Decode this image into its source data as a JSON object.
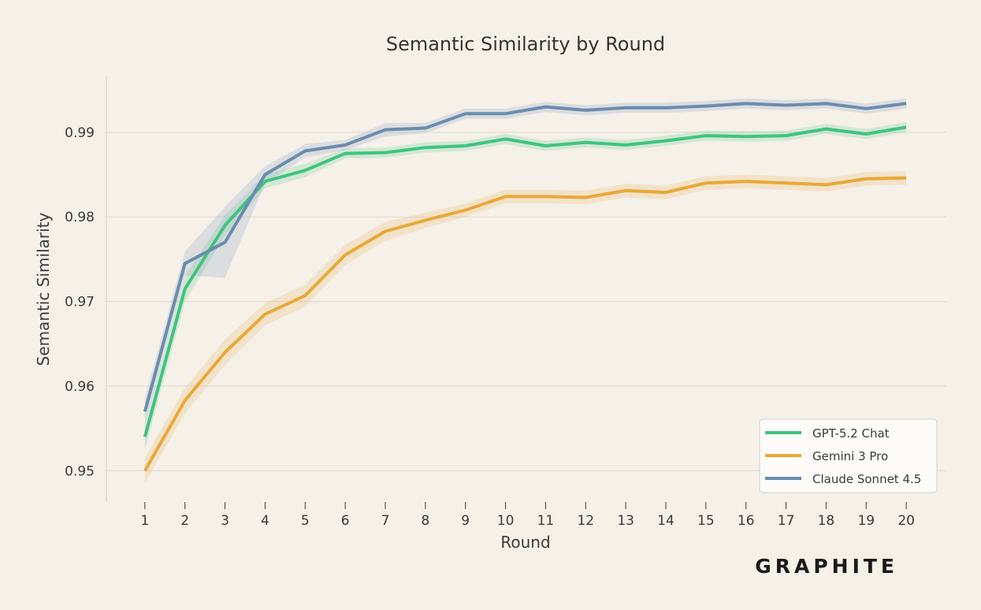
{
  "brand": "GRAPHITE",
  "chart_data": {
    "type": "line",
    "title": "Semantic Similarity by Round",
    "xlabel": "Round",
    "ylabel": "Semantic Similarity",
    "x": [
      1,
      2,
      3,
      4,
      5,
      6,
      7,
      8,
      9,
      10,
      11,
      12,
      13,
      14,
      15,
      16,
      17,
      18,
      19,
      20
    ],
    "xlim": [
      0.0,
      21.0
    ],
    "ylim": [
      0.9463,
      0.9966
    ],
    "yticks": [
      0.95,
      0.96,
      0.97,
      0.98,
      0.99
    ],
    "ytick_labels": [
      "0.95",
      "0.96",
      "0.97",
      "0.98",
      "0.99"
    ],
    "grid": true,
    "legend_position": "bottom-right",
    "series": [
      {
        "name": "GPT-5.2 Chat",
        "color": "#3ec47e",
        "values": [
          0.954,
          0.9715,
          0.979,
          0.9842,
          0.9855,
          0.9875,
          0.9876,
          0.9882,
          0.9884,
          0.9892,
          0.9884,
          0.9888,
          0.9885,
          0.989,
          0.9896,
          0.9895,
          0.9896,
          0.9904,
          0.9898,
          0.9906
        ],
        "ci_halfwidth": [
          0.0015,
          0.0015,
          0.0012,
          0.0008,
          0.0008,
          0.0006,
          0.0006,
          0.0006,
          0.0006,
          0.0006,
          0.0006,
          0.0006,
          0.0006,
          0.0006,
          0.0006,
          0.0006,
          0.0006,
          0.0006,
          0.0006,
          0.0006
        ]
      },
      {
        "name": "Gemini 3 Pro",
        "color": "#e8a838",
        "values": [
          0.95,
          0.9583,
          0.964,
          0.9685,
          0.9707,
          0.9755,
          0.9783,
          0.9796,
          0.9808,
          0.9824,
          0.9824,
          0.9823,
          0.9831,
          0.9829,
          0.984,
          0.9842,
          0.984,
          0.9838,
          0.9845,
          0.9846
        ],
        "ci_halfwidth": [
          0.0015,
          0.0015,
          0.0015,
          0.0013,
          0.0013,
          0.0012,
          0.0011,
          0.0009,
          0.0008,
          0.0008,
          0.0008,
          0.0008,
          0.0008,
          0.0008,
          0.0008,
          0.0008,
          0.0008,
          0.0008,
          0.0008,
          0.0008
        ]
      },
      {
        "name": "Claude Sonnet 4.5",
        "color": "#6a8caf",
        "values": [
          0.957,
          0.9745,
          0.977,
          0.985,
          0.9878,
          0.9885,
          0.9903,
          0.9905,
          0.9922,
          0.9922,
          0.993,
          0.9926,
          0.9929,
          0.9929,
          0.9931,
          0.9934,
          0.9932,
          0.9934,
          0.9928,
          0.9934
        ],
        "ci_halfwidth": [
          0.0015,
          0.0014,
          0.0042,
          0.001,
          0.0008,
          0.0006,
          0.0008,
          0.0006,
          0.0006,
          0.0006,
          0.0006,
          0.0006,
          0.0006,
          0.0006,
          0.0006,
          0.0006,
          0.0006,
          0.0006,
          0.0006,
          0.0006
        ]
      }
    ]
  }
}
